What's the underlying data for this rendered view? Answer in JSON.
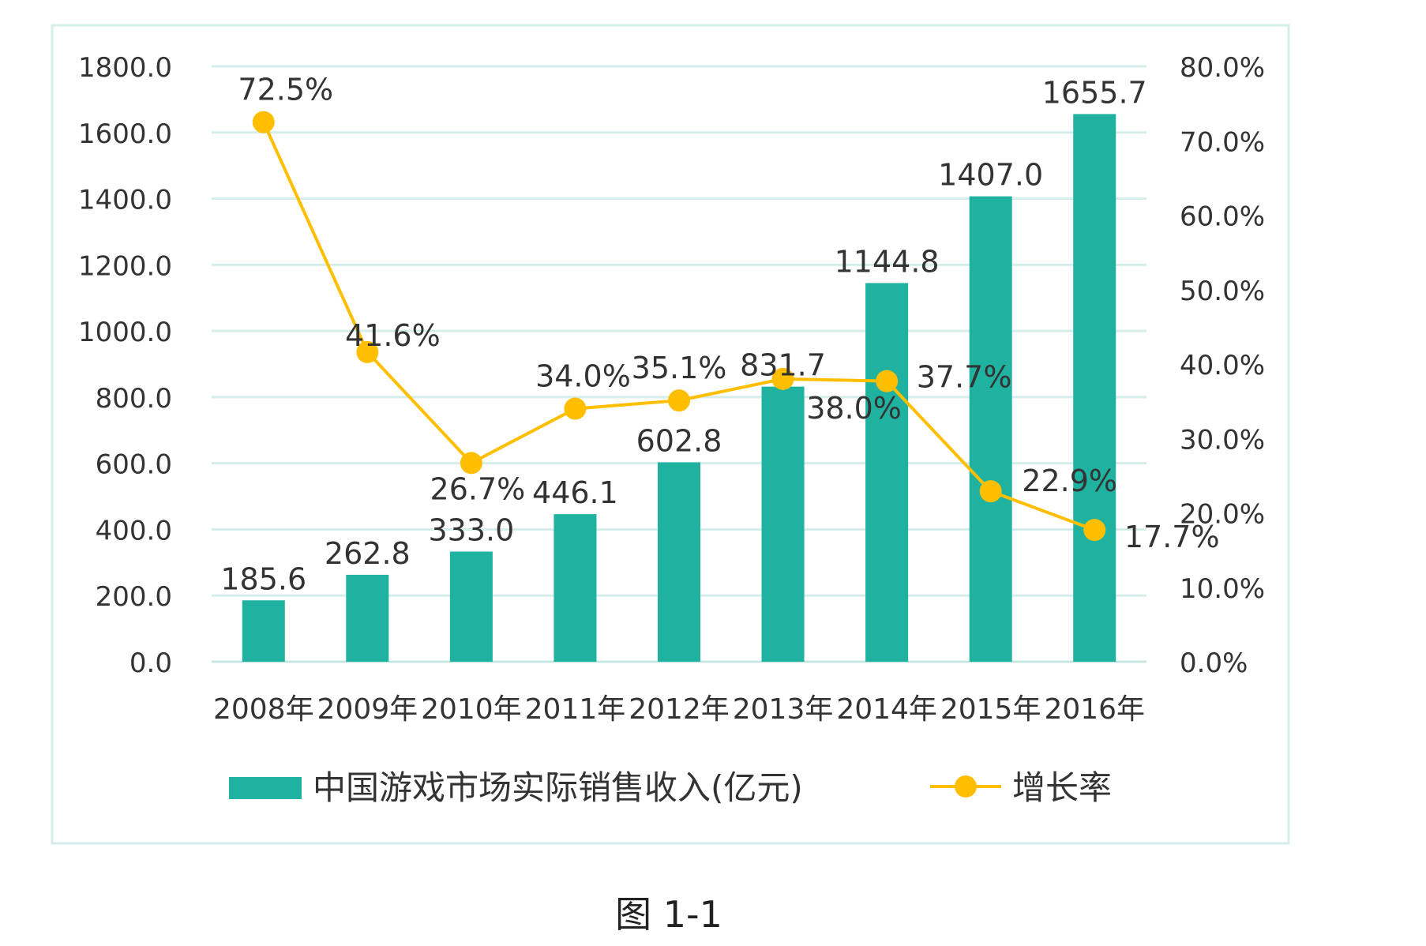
{
  "chart_data": {
    "type": "bar",
    "categories": [
      "2008年",
      "2009年",
      "2010年",
      "2011年",
      "2012年",
      "2013年",
      "2014年",
      "2015年",
      "2016年"
    ],
    "series": [
      {
        "name": "中国游戏市场实际销售收入(亿元)",
        "type": "bar",
        "axis": "left",
        "values": [
          185.6,
          262.8,
          333.0,
          446.1,
          602.8,
          831.7,
          1144.8,
          1407.0,
          1655.7
        ],
        "labels": [
          "185.6",
          "262.8",
          "333.0",
          "446.1",
          "602.8",
          "831.7",
          "1144.8",
          "1407.0",
          "1655.7"
        ],
        "color": "#20B2A0"
      },
      {
        "name": "增长率",
        "type": "line",
        "axis": "right",
        "values": [
          72.5,
          41.6,
          26.7,
          34.0,
          35.1,
          38.0,
          37.7,
          22.9,
          17.7
        ],
        "labels": [
          "72.5%",
          "41.6%",
          "26.7%",
          "34.0%",
          "35.1%",
          "38.0%",
          "37.7%",
          "22.9%",
          "17.7%"
        ],
        "color": "#FFBF00"
      }
    ],
    "y_left": {
      "ylim": [
        0,
        1800
      ],
      "ticks": [
        "0.0",
        "200.0",
        "400.0",
        "600.0",
        "800.0",
        "1000.0",
        "1200.0",
        "1400.0",
        "1600.0",
        "1800.0"
      ]
    },
    "y_right": {
      "ylim": [
        0,
        80
      ],
      "ticks": [
        "0.0%",
        "10.0%",
        "20.0%",
        "30.0%",
        "40.0%",
        "50.0%",
        "60.0%",
        "70.0%",
        "80.0%"
      ]
    },
    "grid": true,
    "legend": "bottom",
    "border_color": "#D5EEEA",
    "grid_color": "#D5EEEA"
  },
  "caption": "图 1-1"
}
